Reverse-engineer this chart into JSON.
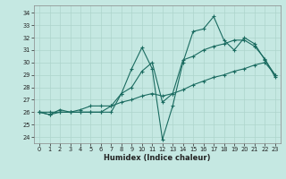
{
  "xlabel": "Humidex (Indice chaleur)",
  "bg_color": "#c5e8e2",
  "grid_color": "#aed4cc",
  "line_color": "#1a6b60",
  "xlim": [
    -0.5,
    23.5
  ],
  "ylim": [
    23.5,
    34.6
  ],
  "yticks": [
    24,
    25,
    26,
    27,
    28,
    29,
    30,
    31,
    32,
    33,
    34
  ],
  "xticks": [
    0,
    1,
    2,
    3,
    4,
    5,
    6,
    7,
    8,
    9,
    10,
    11,
    12,
    13,
    14,
    15,
    16,
    17,
    18,
    19,
    20,
    21,
    22,
    23
  ],
  "line1_x": [
    0,
    1,
    2,
    3,
    4,
    5,
    6,
    7,
    8,
    9,
    10,
    11,
    12,
    13,
    14,
    15,
    16,
    17,
    18,
    19,
    20,
    21,
    22,
    23
  ],
  "line1_y": [
    26.0,
    25.8,
    26.2,
    26.0,
    26.0,
    26.0,
    26.0,
    26.0,
    27.5,
    29.5,
    31.2,
    29.5,
    23.8,
    26.5,
    30.0,
    32.5,
    32.7,
    33.7,
    31.8,
    31.0,
    32.0,
    31.5,
    30.2,
    29.0
  ],
  "line2_x": [
    0,
    1,
    2,
    3,
    4,
    5,
    6,
    7,
    8,
    9,
    10,
    11,
    12,
    13,
    14,
    15,
    16,
    17,
    18,
    19,
    20,
    21,
    22,
    23
  ],
  "line2_y": [
    26.0,
    25.8,
    26.0,
    26.0,
    26.0,
    26.0,
    26.0,
    26.5,
    27.5,
    28.0,
    29.3,
    30.0,
    26.8,
    27.5,
    30.2,
    30.5,
    31.0,
    31.3,
    31.5,
    31.8,
    31.8,
    31.3,
    30.3,
    28.8
  ],
  "line3_x": [
    0,
    1,
    2,
    3,
    4,
    5,
    6,
    7,
    8,
    9,
    10,
    11,
    12,
    13,
    14,
    15,
    16,
    17,
    18,
    19,
    20,
    21,
    22,
    23
  ],
  "line3_y": [
    26.0,
    26.0,
    26.0,
    26.0,
    26.2,
    26.5,
    26.5,
    26.5,
    26.8,
    27.0,
    27.3,
    27.5,
    27.3,
    27.5,
    27.8,
    28.2,
    28.5,
    28.8,
    29.0,
    29.3,
    29.5,
    29.8,
    30.0,
    29.0
  ]
}
